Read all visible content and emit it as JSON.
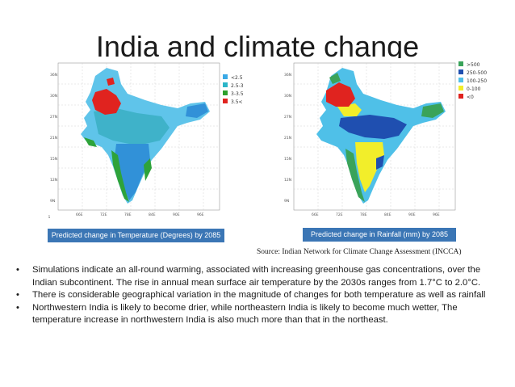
{
  "slide": {
    "title": "India and climate change"
  },
  "maps": {
    "temperature": {
      "caption": "Predicted change in Temperature (Degrees) by 2085",
      "legend": [
        {
          "label": "<2.5",
          "color": "#3aa9e6"
        },
        {
          "label": "2.5-3",
          "color": "#2bb5c8"
        },
        {
          "label": "3-3.5",
          "color": "#2ca02c"
        },
        {
          "label": "3.5<",
          "color": "#e0231f"
        }
      ]
    },
    "rainfall": {
      "caption": "Predicted change in Rainfall (mm) by 2085",
      "legend": [
        {
          "label": ">500",
          "color": "#3aa35a"
        },
        {
          "label": "250-500",
          "color": "#1f4fb0"
        },
        {
          "label": "100-250",
          "color": "#4fc0e8"
        },
        {
          "label": "0-100",
          "color": "#f2ee2a"
        },
        {
          "label": "<0",
          "color": "#e0231f"
        }
      ]
    }
  },
  "source": "Source: Indian Network for Climate Change Assessment (INCCA)",
  "bullets": [
    "Simulations indicate an all-round warming, associated with increasing greenhouse gas concentrations, over the Indian subcontinent. The rise in annual mean surface air temperature by the 2030s ranges from 1.7°C to 2.0°C.",
    "There is considerable geographical variation in the magnitude of changes for both temperature as well as rainfall",
    "Northwestern India is likely to become drier, while northeastern India is likely to become much wetter, The temperature increase in northwestern India is also much more than that in the northeast."
  ],
  "bullet_marker": "•"
}
